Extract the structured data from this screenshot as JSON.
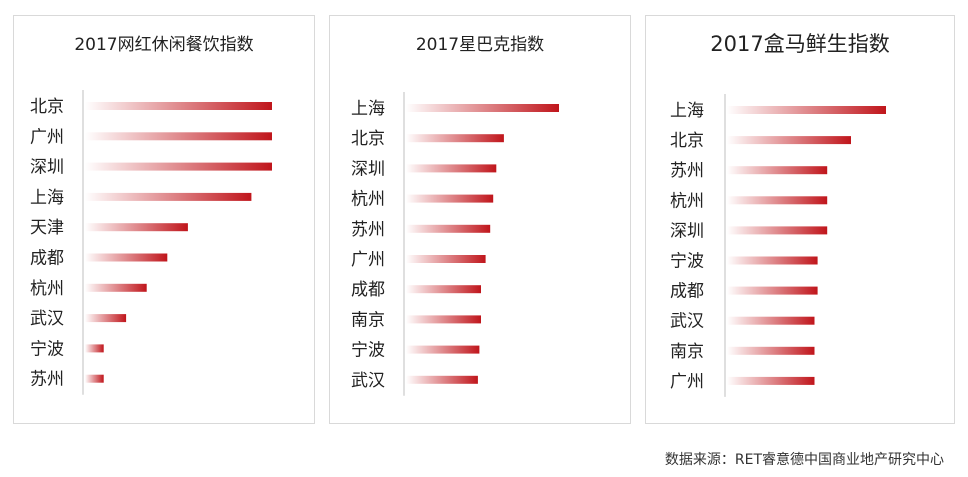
{
  "chart_data": [
    {
      "type": "bar",
      "title": "2017网红休闲餐饮指数",
      "categories": [
        "北京",
        "广州",
        "深圳",
        "上海",
        "天津",
        "成都",
        "杭州",
        "武汉",
        "宁波",
        "苏州"
      ],
      "values": [
        100,
        100,
        100,
        89,
        55,
        44,
        33,
        22,
        10,
        10
      ],
      "xlim": [
        0,
        100
      ],
      "colors": {
        "bar_start": "#ffffff",
        "bar_end": "#c0151b"
      }
    },
    {
      "type": "bar",
      "title": "2017星巴克指数",
      "categories": [
        "上海",
        "北京",
        "深圳",
        "杭州",
        "苏州",
        "广州",
        "成都",
        "南京",
        "宁波",
        "武汉"
      ],
      "values": [
        100,
        64,
        59,
        57,
        55,
        52,
        49,
        49,
        48,
        47
      ],
      "xlim": [
        0,
        100
      ],
      "colors": {
        "bar_start": "#ffffff",
        "bar_end": "#c0151b"
      }
    },
    {
      "type": "bar",
      "title": "2017盒马鲜生指数",
      "categories": [
        "上海",
        "北京",
        "苏州",
        "杭州",
        "深圳",
        "宁波",
        "成都",
        "武汉",
        "南京",
        "广州"
      ],
      "values": [
        100,
        78,
        63,
        63,
        63,
        57,
        57,
        55,
        55,
        55
      ],
      "xlim": [
        0,
        100
      ],
      "colors": {
        "bar_start": "#ffffff",
        "bar_end": "#c0151b"
      }
    }
  ],
  "source_note": "数据来源：RET睿意德中国商业地产研究中心"
}
